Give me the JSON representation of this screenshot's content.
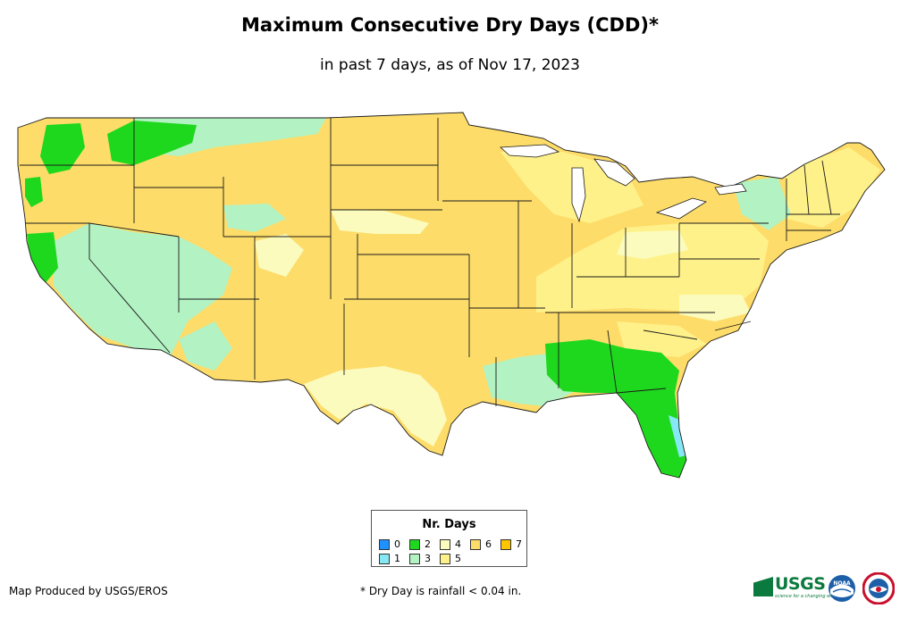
{
  "title": "Maximum Consecutive Dry Days (CDD)*",
  "subtitle": "in past 7 days, as of Nov 17, 2023",
  "legend": {
    "title": "Nr. Days",
    "items": [
      {
        "label": "0",
        "color": "#1e90ff"
      },
      {
        "label": "1",
        "color": "#87e8f5"
      },
      {
        "label": "2",
        "color": "#1ed81e"
      },
      {
        "label": "3",
        "color": "#b3f2c3"
      },
      {
        "label": "4",
        "color": "#fbfbbd"
      },
      {
        "label": "5",
        "color": "#fff18a"
      },
      {
        "label": "6",
        "color": "#fddc69"
      },
      {
        "label": "7",
        "color": "#fcc500"
      }
    ]
  },
  "credit": "Map Produced by USGS/EROS",
  "footnote": "* Dry Day is rainfall < 0.04 in.",
  "logos": {
    "usgs": "USGS",
    "usgs_tagline": "science for a changing world",
    "noaa": "NOAA"
  }
}
